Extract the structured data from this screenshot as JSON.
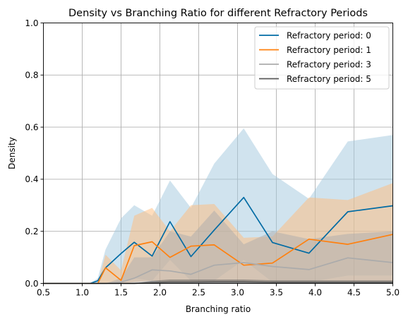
{
  "chart_data": {
    "type": "line",
    "title": "Density vs Branching Ratio for different Refractory Periods",
    "xlabel": "Branching ratio",
    "ylabel": "Density",
    "xlim": [
      0.5,
      5.0
    ],
    "ylim": [
      0.0,
      1.0
    ],
    "xticks": [
      "0.5",
      "1.0",
      "1.5",
      "2.0",
      "2.5",
      "3.0",
      "3.5",
      "4.0",
      "4.5",
      "5.0"
    ],
    "yticks": [
      "0.0",
      "0.2",
      "0.4",
      "0.6",
      "0.8",
      "1.0"
    ],
    "grid": true,
    "legend_position": "top-right",
    "x": [
      0.5,
      1.0,
      1.1,
      1.2,
      1.3,
      1.5,
      1.67,
      1.9,
      2.13,
      2.4,
      2.7,
      3.08,
      3.45,
      3.92,
      4.42,
      5.0
    ],
    "series": [
      {
        "name": "Refractory period: 0",
        "color": "#006ba4",
        "band_color": "#a2c8de",
        "values": [
          0,
          0,
          0,
          0.01,
          0.06,
          0.115,
          0.158,
          0.105,
          0.237,
          0.103,
          0.205,
          0.33,
          0.157,
          0.116,
          0.275,
          0.298
        ],
        "lower": [
          0,
          0,
          0,
          0,
          0,
          0.005,
          0.02,
          0.01,
          0.09,
          0.01,
          0.01,
          0.09,
          0.005,
          0.005,
          0.03,
          0.03
        ],
        "upper": [
          0,
          0,
          0,
          0.02,
          0.13,
          0.25,
          0.3,
          0.26,
          0.395,
          0.29,
          0.46,
          0.595,
          0.42,
          0.325,
          0.545,
          0.57
        ]
      },
      {
        "name": "Refractory period: 1",
        "color": "#ff800e",
        "band_color": "#ffbc79",
        "values": [
          0,
          0,
          0,
          0,
          0.06,
          0.012,
          0.145,
          0.16,
          0.1,
          0.143,
          0.148,
          0.07,
          0.078,
          0.17,
          0.15,
          0.188
        ],
        "lower": [
          0,
          0,
          0,
          0,
          0,
          0,
          0.005,
          0.01,
          0.005,
          0.005,
          0.005,
          0.005,
          0.005,
          0.005,
          0.005,
          0.005
        ],
        "upper": [
          0,
          0,
          0,
          0,
          0.11,
          0.05,
          0.26,
          0.29,
          0.2,
          0.3,
          0.305,
          0.175,
          0.18,
          0.33,
          0.32,
          0.385
        ]
      },
      {
        "name": "Refractory period: 3",
        "color": "#ababab",
        "band_color": "#ababab",
        "values": [
          0,
          0,
          0,
          0,
          0,
          0.005,
          0.02,
          0.052,
          0.048,
          0.035,
          0.07,
          0.08,
          0.065,
          0.053,
          0.098,
          0.08
        ],
        "lower": [
          0,
          0,
          0,
          0,
          0,
          0,
          0,
          0,
          0,
          0,
          0,
          0,
          0,
          0,
          0,
          0
        ],
        "upper": [
          0,
          0,
          0,
          0,
          0,
          0.02,
          0.1,
          0.1,
          0.2,
          0.18,
          0.28,
          0.15,
          0.2,
          0.17,
          0.19,
          0.2
        ]
      },
      {
        "name": "Refractory period: 5",
        "color": "#595959",
        "band_color": "#595959",
        "values": [
          0,
          0,
          0,
          0,
          0,
          0,
          0,
          0.003,
          0.005,
          0.005,
          0.006,
          0.006,
          0.004,
          0.004,
          0.004,
          0.004
        ],
        "lower": [
          0,
          0,
          0,
          0,
          0,
          0,
          0,
          0,
          0,
          0,
          0,
          0,
          0,
          0,
          0,
          0
        ],
        "upper": [
          0,
          0,
          0,
          0,
          0,
          0,
          0,
          0.01,
          0.015,
          0.015,
          0.015,
          0.015,
          0.012,
          0.012,
          0.012,
          0.012
        ]
      }
    ]
  }
}
